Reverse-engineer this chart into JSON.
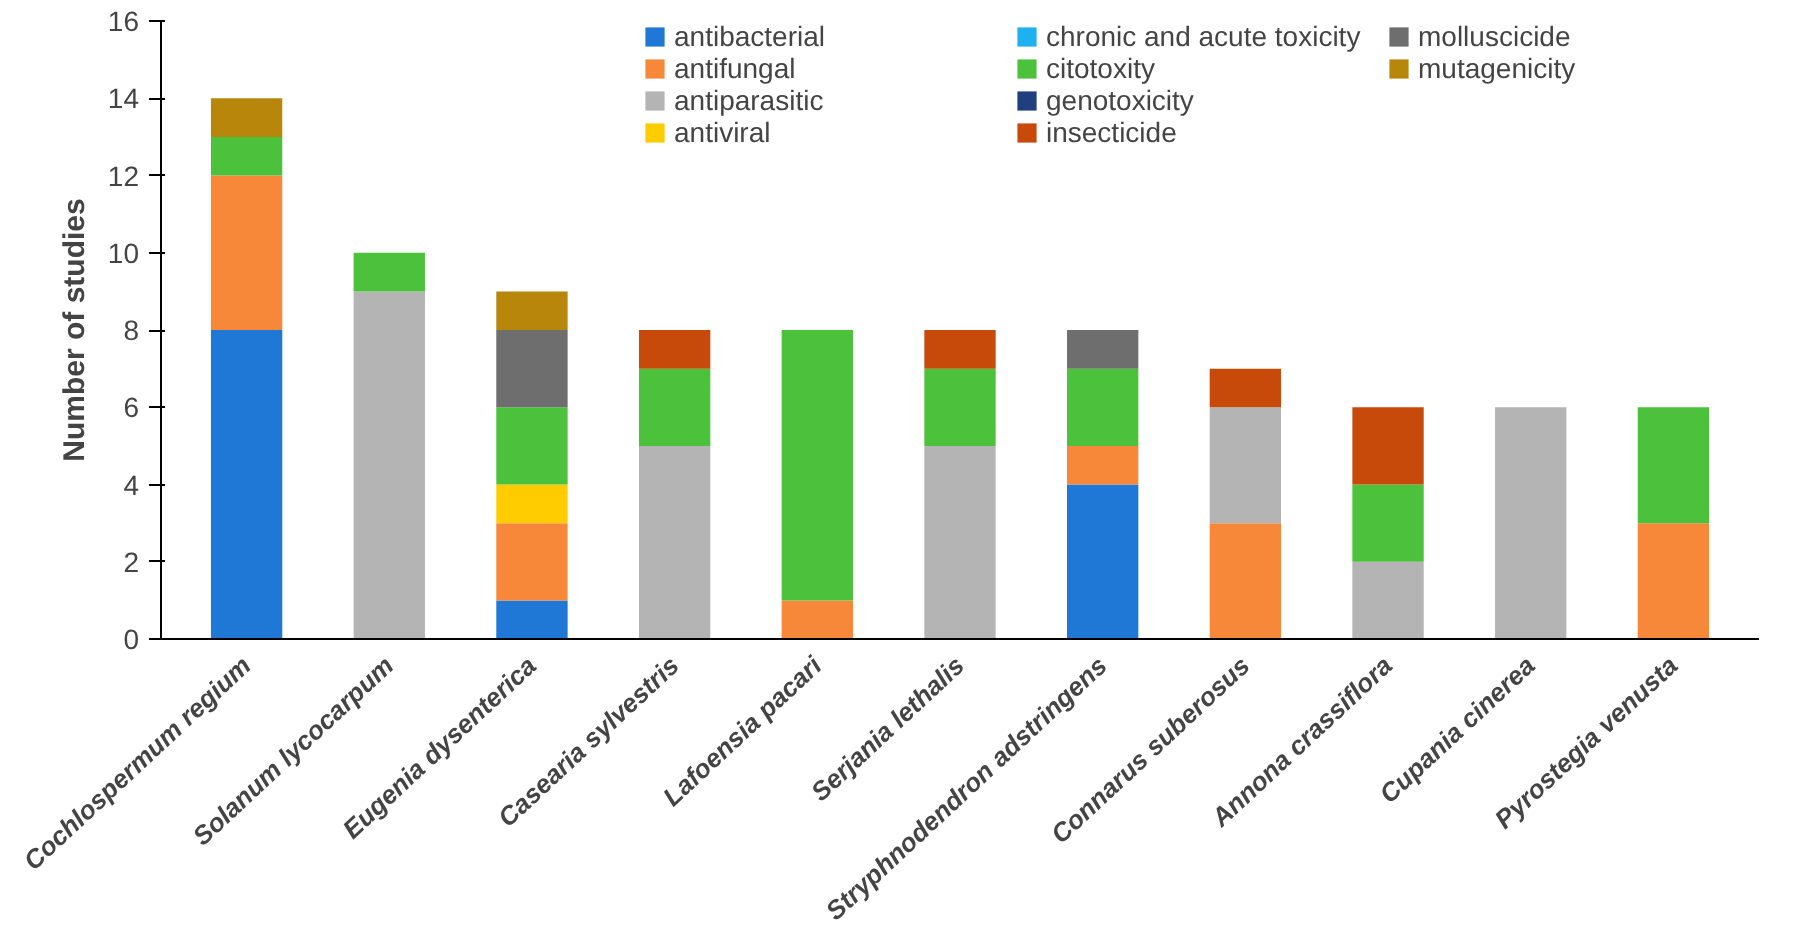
{
  "chart_data": {
    "type": "bar",
    "stacked": true,
    "ylabel": "Number of studies",
    "ylim": [
      0,
      16
    ],
    "yticks": [
      0,
      2,
      4,
      6,
      8,
      10,
      12,
      14,
      16
    ],
    "grid": false,
    "legend": "top right",
    "categories": [
      "Cochlospermum regium",
      "Solanum lycocarpum",
      "Eugenia dysenterica",
      "Casearia sylvestris",
      "Lafoensia pacari",
      "Serjania lethalis",
      "Stryphnodendron adstringens",
      "Connarus suberosus",
      "Annona crassiflora",
      "Cupania cinerea",
      "Pyrostegia venusta"
    ],
    "series": [
      {
        "name": "antibacterial",
        "color": "#1f78d6",
        "values": [
          8,
          0,
          1,
          0,
          0,
          0,
          4,
          0,
          0,
          0,
          0
        ]
      },
      {
        "name": "antifungal",
        "color": "#f7883a",
        "values": [
          4,
          0,
          2,
          0,
          1,
          0,
          1,
          3,
          0,
          0,
          3
        ]
      },
      {
        "name": "antiparasitic",
        "color": "#b4b4b4",
        "values": [
          0,
          9,
          0,
          5,
          0,
          5,
          0,
          3,
          2,
          6,
          0
        ]
      },
      {
        "name": "antiviral",
        "color": "#ffcc00",
        "values": [
          0,
          0,
          1,
          0,
          0,
          0,
          0,
          0,
          0,
          0,
          0
        ]
      },
      {
        "name": "chronic and acute toxicity",
        "color": "#1fb0f0",
        "values": [
          0,
          0,
          0,
          0,
          0,
          0,
          0,
          0,
          0,
          0,
          0
        ]
      },
      {
        "name": "citotoxity",
        "color": "#4cc23c",
        "values": [
          1,
          1,
          2,
          2,
          7,
          2,
          2,
          0,
          2,
          0,
          3
        ]
      },
      {
        "name": "genotoxicity",
        "color": "#1f3f7f",
        "values": [
          0,
          0,
          0,
          0,
          0,
          0,
          0,
          0,
          0,
          0,
          0
        ]
      },
      {
        "name": "insecticide",
        "color": "#c84a0a",
        "values": [
          0,
          0,
          0,
          1,
          0,
          1,
          0,
          1,
          2,
          0,
          0
        ]
      },
      {
        "name": "molluscicide",
        "color": "#6e6e6e",
        "values": [
          0,
          0,
          2,
          0,
          0,
          0,
          1,
          0,
          0,
          0,
          0
        ]
      },
      {
        "name": "mutagenicity",
        "color": "#b8860b",
        "values": [
          1,
          0,
          1,
          0,
          0,
          0,
          0,
          0,
          0,
          0,
          0
        ]
      }
    ]
  }
}
